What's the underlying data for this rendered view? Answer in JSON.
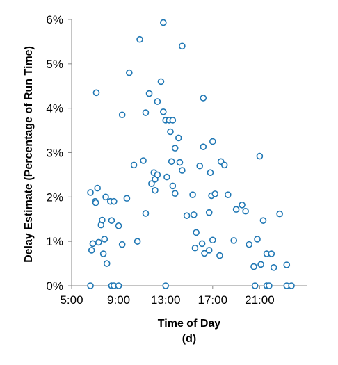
{
  "chart_data": {
    "type": "scatter",
    "subtitle": "(d)",
    "xlabel": "Time of Day",
    "ylabel": "Delay Estimate (Percentage of Run Time)",
    "xlim": [
      5,
      25
    ],
    "ylim": [
      0,
      6
    ],
    "x_tick_values": [
      5,
      9,
      13,
      17,
      21
    ],
    "x_tick_labels": [
      "5:00",
      "9:00",
      "13:00",
      "17:00",
      "21:00"
    ],
    "y_tick_values": [
      0,
      1,
      2,
      3,
      4,
      5,
      6
    ],
    "y_tick_labels": [
      "0%",
      "1%",
      "2%",
      "3%",
      "4%",
      "5%",
      "6%"
    ],
    "grid": false,
    "marker_color": "#1f77b4",
    "series": [
      {
        "points": [
          [
            6.6,
            2.1
          ],
          [
            6.6,
            0.0
          ],
          [
            6.7,
            0.8
          ],
          [
            6.8,
            0.95
          ],
          [
            7.0,
            1.9
          ],
          [
            7.05,
            1.87
          ],
          [
            7.1,
            4.35
          ],
          [
            7.2,
            2.2
          ],
          [
            7.3,
            0.98
          ],
          [
            7.5,
            1.37
          ],
          [
            7.6,
            1.48
          ],
          [
            7.7,
            0.72
          ],
          [
            7.8,
            1.05
          ],
          [
            7.9,
            2.0
          ],
          [
            8.0,
            0.5
          ],
          [
            8.3,
            1.9
          ],
          [
            8.4,
            1.47
          ],
          [
            8.4,
            0.0
          ],
          [
            8.6,
            0.0
          ],
          [
            8.6,
            1.9
          ],
          [
            9.0,
            1.35
          ],
          [
            9.0,
            0.0
          ],
          [
            9.3,
            3.85
          ],
          [
            9.3,
            0.93
          ],
          [
            9.7,
            1.97
          ],
          [
            9.9,
            4.8
          ],
          [
            10.3,
            2.72
          ],
          [
            10.6,
            1.0
          ],
          [
            10.8,
            5.55
          ],
          [
            11.1,
            2.82
          ],
          [
            11.3,
            1.63
          ],
          [
            11.3,
            3.9
          ],
          [
            11.6,
            4.33
          ],
          [
            11.8,
            2.3
          ],
          [
            12.0,
            2.55
          ],
          [
            12.1,
            2.15
          ],
          [
            12.1,
            2.4
          ],
          [
            12.3,
            2.5
          ],
          [
            12.3,
            4.15
          ],
          [
            12.6,
            4.6
          ],
          [
            12.8,
            5.93
          ],
          [
            12.8,
            3.92
          ],
          [
            13.0,
            0.0
          ],
          [
            13.0,
            3.73
          ],
          [
            13.1,
            2.45
          ],
          [
            13.3,
            3.73
          ],
          [
            13.4,
            3.47
          ],
          [
            13.5,
            2.8
          ],
          [
            13.6,
            3.73
          ],
          [
            13.6,
            2.25
          ],
          [
            13.8,
            3.1
          ],
          [
            13.8,
            2.08
          ],
          [
            14.1,
            3.33
          ],
          [
            14.2,
            2.78
          ],
          [
            14.4,
            5.4
          ],
          [
            14.4,
            2.6
          ],
          [
            14.8,
            1.58
          ],
          [
            15.3,
            2.05
          ],
          [
            15.4,
            1.6
          ],
          [
            15.5,
            0.85
          ],
          [
            15.6,
            1.2
          ],
          [
            15.9,
            2.7
          ],
          [
            16.1,
            0.95
          ],
          [
            16.2,
            4.23
          ],
          [
            16.2,
            3.13
          ],
          [
            16.3,
            0.73
          ],
          [
            16.7,
            0.8
          ],
          [
            16.7,
            1.65
          ],
          [
            16.8,
            2.55
          ],
          [
            16.9,
            2.03
          ],
          [
            17.0,
            3.25
          ],
          [
            17.0,
            1.03
          ],
          [
            17.2,
            2.07
          ],
          [
            17.6,
            0.68
          ],
          [
            17.7,
            2.8
          ],
          [
            18.0,
            2.72
          ],
          [
            18.3,
            2.05
          ],
          [
            18.8,
            1.02
          ],
          [
            19.0,
            1.72
          ],
          [
            19.5,
            1.82
          ],
          [
            19.8,
            1.68
          ],
          [
            20.1,
            0.93
          ],
          [
            20.5,
            0.43
          ],
          [
            20.6,
            0.0
          ],
          [
            20.8,
            1.05
          ],
          [
            21.0,
            2.92
          ],
          [
            21.1,
            0.48
          ],
          [
            21.3,
            1.47
          ],
          [
            21.6,
            0.72
          ],
          [
            21.6,
            0.0
          ],
          [
            21.8,
            0.0
          ],
          [
            22.0,
            0.72
          ],
          [
            22.2,
            0.41
          ],
          [
            22.7,
            1.62
          ],
          [
            23.3,
            0.0
          ],
          [
            23.3,
            0.47
          ],
          [
            23.7,
            0.0
          ]
        ]
      }
    ]
  }
}
